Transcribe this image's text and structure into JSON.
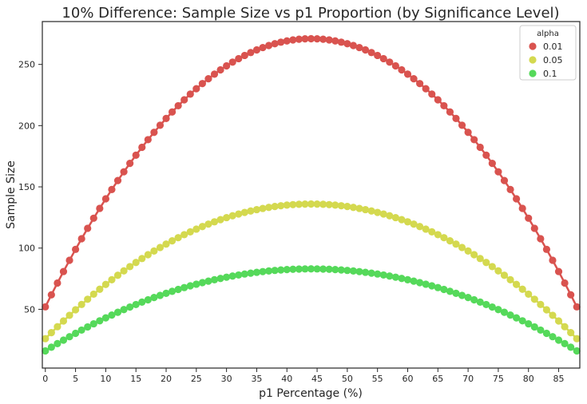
{
  "chart_data": {
    "type": "line",
    "title": "10% Difference: Sample Size vs p1 Proportion (by Significance Level)",
    "xlabel": "p1 Percentage (%)",
    "ylabel": "Sample Size",
    "x_ticks": [
      0,
      5,
      10,
      15,
      20,
      25,
      30,
      35,
      40,
      45,
      50,
      55,
      60,
      65,
      70,
      75,
      80,
      85
    ],
    "y_ticks": [
      50,
      100,
      150,
      200,
      250
    ],
    "xlim": [
      -0.5,
      88.5
    ],
    "ylim": [
      2,
      285
    ],
    "x_range": [
      0,
      88
    ],
    "markers": true,
    "grid": false,
    "legend": {
      "title": "alpha",
      "placement": "top-right"
    },
    "series": [
      {
        "name": "0.01",
        "color": "#d9534f",
        "peak_x": 44,
        "min_value": 52,
        "peak_value": 271
      },
      {
        "name": "0.05",
        "color": "#d4d94f",
        "peak_x": 44,
        "min_value": 26,
        "peak_value": 136
      },
      {
        "name": "0.1",
        "color": "#55d95a",
        "peak_x": 44,
        "min_value": 16,
        "peak_value": 83
      }
    ]
  }
}
